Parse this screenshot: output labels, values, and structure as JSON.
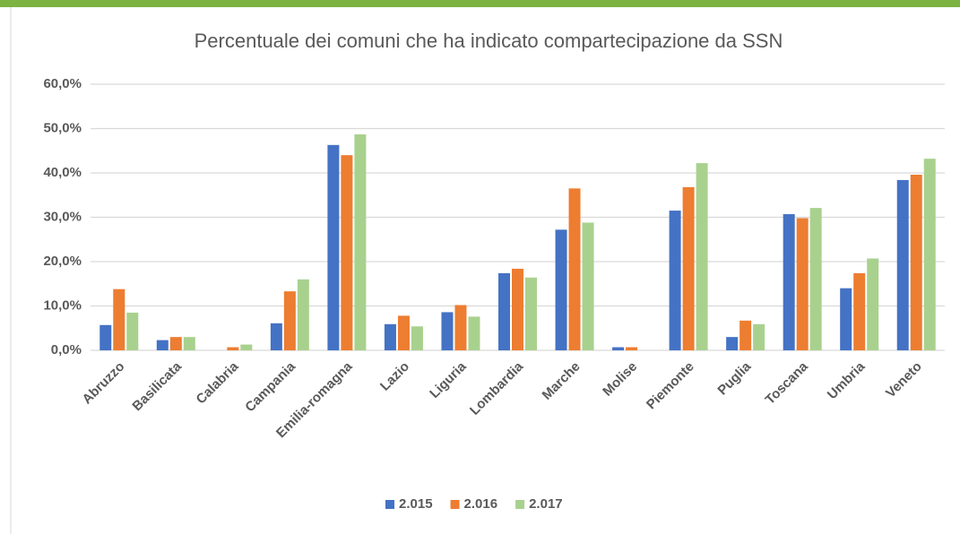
{
  "chart_data": {
    "type": "bar",
    "title": "Percentuale dei comuni che ha indicato compartecipazione da SSN",
    "categories": [
      "Abruzzo",
      "Basilicata",
      "Calabria",
      "Campania",
      "Emilia-romagna",
      "Lazio",
      "Liguria",
      "Lombardia",
      "Marche",
      "Molise",
      "Piemonte",
      "Puglia",
      "Toscana",
      "Umbria",
      "Veneto"
    ],
    "series": [
      {
        "name": "2.015",
        "color": "#4472c4",
        "values": [
          5.7,
          2.3,
          0,
          6.1,
          46.3,
          5.9,
          8.6,
          17.4,
          27.2,
          0.7,
          31.5,
          3.0,
          30.7,
          14.0,
          38.4
        ]
      },
      {
        "name": "2.016",
        "color": "#ed7d31",
        "values": [
          13.8,
          3.0,
          0.7,
          13.3,
          44.0,
          7.8,
          10.2,
          18.4,
          36.5,
          0.7,
          36.8,
          6.7,
          29.8,
          17.4,
          39.6
        ]
      },
      {
        "name": "2.017",
        "color": "#a9d18e",
        "values": [
          8.5,
          3.0,
          1.3,
          16.0,
          48.7,
          5.4,
          7.6,
          16.4,
          28.8,
          0,
          42.2,
          5.9,
          32.1,
          20.7,
          43.2
        ]
      }
    ],
    "ylim": [
      0,
      60
    ],
    "yticks": [
      {
        "value": 0,
        "label": "0,0%"
      },
      {
        "value": 10,
        "label": "10,0%"
      },
      {
        "value": 20,
        "label": "20,0%"
      },
      {
        "value": 30,
        "label": "30,0%"
      },
      {
        "value": 40,
        "label": "40,0%"
      },
      {
        "value": 50,
        "label": "50,0%"
      },
      {
        "value": 60,
        "label": "60,0%"
      }
    ],
    "grid": true,
    "legend": "bottom"
  }
}
